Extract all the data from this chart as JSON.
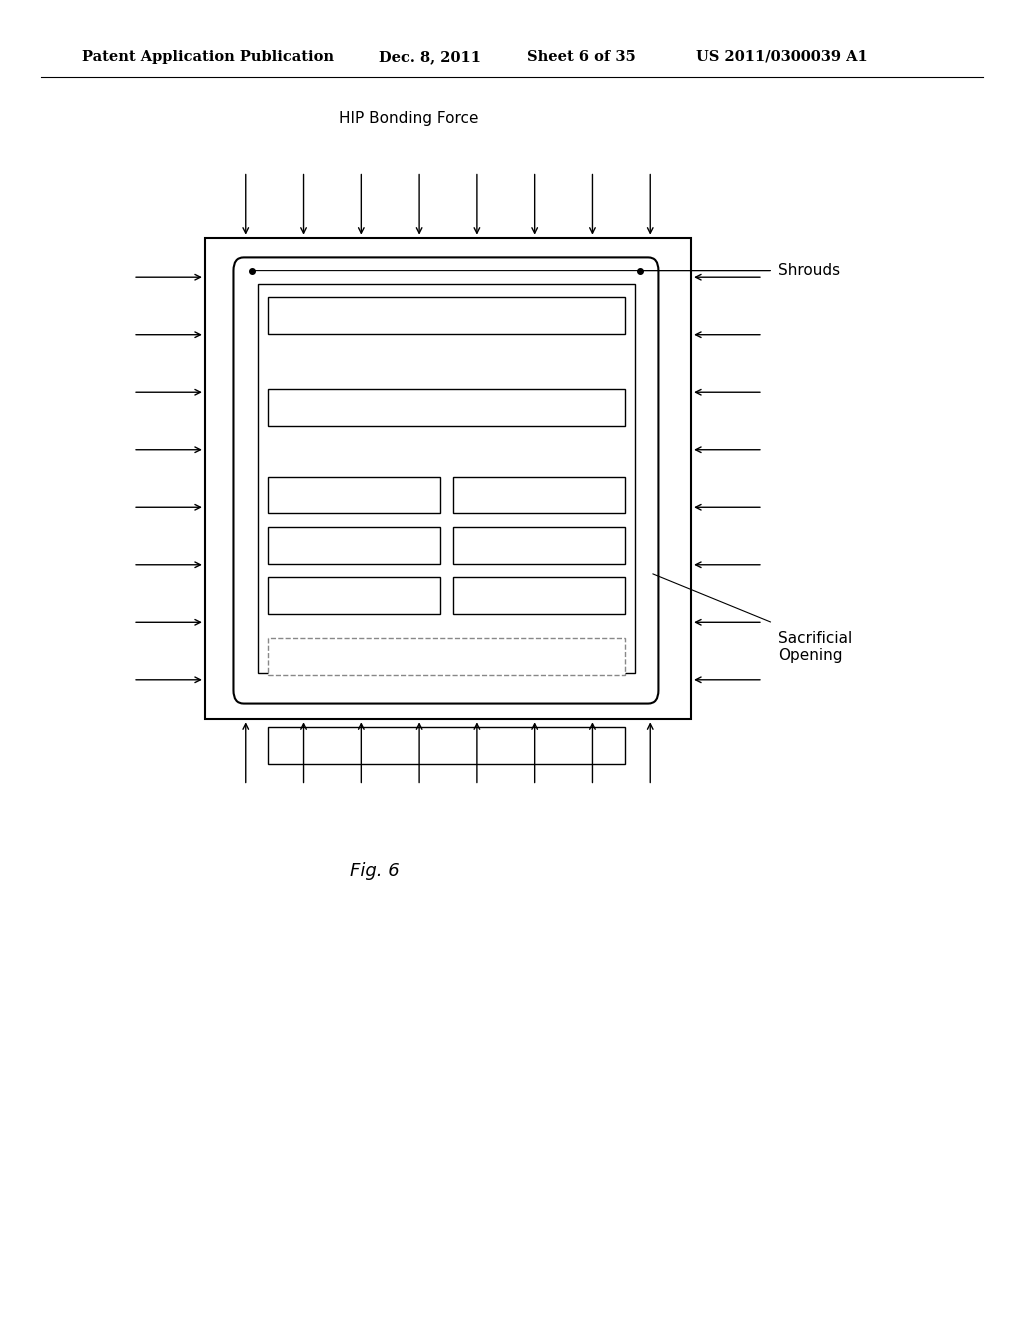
{
  "bg_color": "#ffffff",
  "header_text": "Patent Application Publication",
  "header_date": "Dec. 8, 2011",
  "header_sheet": "Sheet 6 of 35",
  "header_patent": "US 2011/0300039 A1",
  "hip_label": "HIP Bonding Force",
  "shrouds_label": "Shrouds",
  "sacrificial_label": "Sacrificial\nOpening",
  "fig_label": "Fig. 6"
}
